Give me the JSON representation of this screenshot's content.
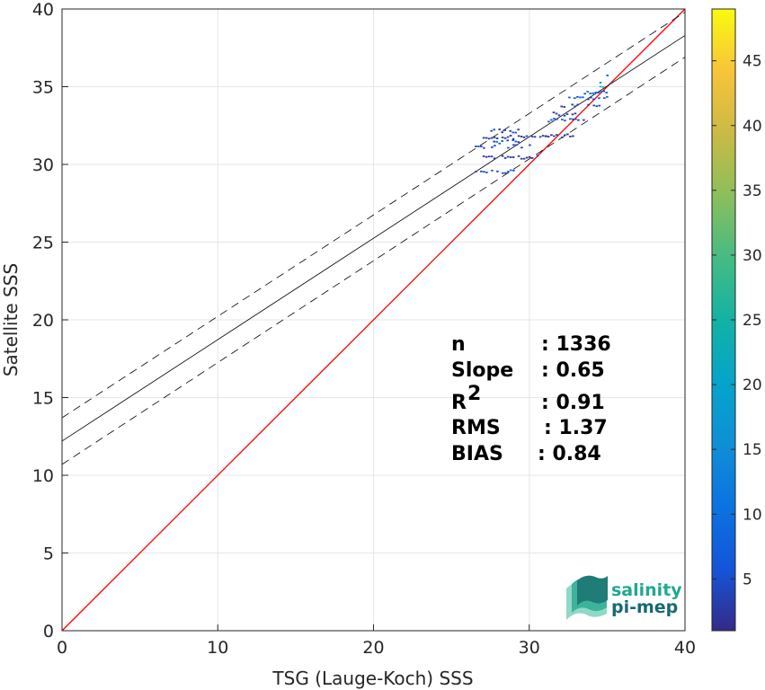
{
  "chart_data": {
    "type": "scatter",
    "subtype": "density-scatter",
    "xlabel": "TSG (Lauge-Koch) SSS",
    "ylabel": "Satellite SSS",
    "xlim": [
      0,
      40
    ],
    "ylim": [
      0,
      40
    ],
    "xticks": [
      "0",
      "10",
      "20",
      "30",
      "40"
    ],
    "yticks": [
      "0",
      "5",
      "10",
      "15",
      "20",
      "25",
      "30",
      "35",
      "40"
    ],
    "grid": true,
    "colorbar": {
      "range": [
        1,
        49
      ],
      "ticks": [
        "5",
        "10",
        "15",
        "20",
        "25",
        "30",
        "35",
        "40",
        "45"
      ],
      "colormap": "parula"
    },
    "lines": [
      {
        "name": "identity",
        "color": "#ff0000",
        "x": [
          0,
          40
        ],
        "y": [
          0,
          40
        ]
      },
      {
        "name": "regression",
        "color": "#000000",
        "style": "solid",
        "x": [
          0,
          40
        ],
        "y": [
          12.2,
          38.3
        ]
      },
      {
        "name": "upper-bound",
        "color": "#000000",
        "style": "dashed",
        "x": [
          0,
          40
        ],
        "y": [
          13.7,
          39.8
        ]
      },
      {
        "name": "lower-bound",
        "color": "#000000",
        "style": "dashed",
        "x": [
          0,
          40
        ],
        "y": [
          10.7,
          36.9
        ]
      }
    ],
    "clusters": [
      {
        "x": [
          26.5,
          29.0
        ],
        "y": 29.6,
        "density": 6
      },
      {
        "x": [
          27.0,
          30.5
        ],
        "y": 30.5,
        "density": 3
      },
      {
        "x": [
          26.5,
          30.0
        ],
        "y": 31.2,
        "density": 5
      },
      {
        "x": [
          27.5,
          29.5
        ],
        "y": 31.5,
        "density": 7
      },
      {
        "x": [
          27.0,
          31.5
        ],
        "y": 31.8,
        "density": 3
      },
      {
        "x": [
          27.5,
          29.5
        ],
        "y": 32.2,
        "density": 5
      },
      {
        "x": [
          31.0,
          33.0
        ],
        "y": 31.9,
        "density": 3
      },
      {
        "x": [
          31.0,
          33.5
        ],
        "y": 32.9,
        "density": 6
      },
      {
        "x": [
          31.5,
          33.0
        ],
        "y": 33.3,
        "density": 4
      },
      {
        "x": [
          32.0,
          34.5
        ],
        "y": 33.8,
        "density": 4
      },
      {
        "x": [
          32.5,
          35.0
        ],
        "y": 34.3,
        "density": 7
      },
      {
        "x": [
          33.5,
          35.2
        ],
        "y": 34.7,
        "density": 10
      },
      {
        "x": [
          34.5,
          35.3
        ],
        "y": 35.0,
        "density": 25
      },
      {
        "x": [
          34.5,
          35.2
        ],
        "y": 35.4,
        "density": 14
      },
      {
        "x": [
          34.6,
          35.0
        ],
        "y": 35.8,
        "density": 12
      }
    ],
    "stats": [
      {
        "label": "n",
        "value": ": 1336"
      },
      {
        "label": "Slope",
        "value": ": 0.65"
      },
      {
        "label": "R",
        "sup": "2",
        "value": ": 0.91"
      },
      {
        "label": "RMS",
        "value": ": 1.37"
      },
      {
        "label": "BIAS",
        "value": ": 0.84"
      }
    ]
  },
  "logo": {
    "line1": "salinity",
    "line2": "pi-mep"
  },
  "colors": {
    "identity": "#ff0000",
    "logo_light": "#1fa98f",
    "logo_dark": "#176a70"
  }
}
